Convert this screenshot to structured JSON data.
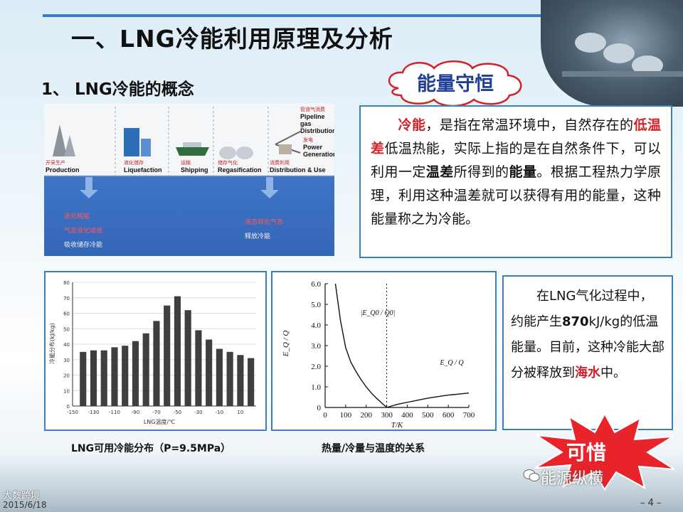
{
  "title": "一、LNG冷能利用原理及分析",
  "subtitle": "1、 LNG冷能的概念",
  "cloud_label": "能量守恒",
  "process": {
    "steps": [
      {
        "cn": "开采生产",
        "en": "Production"
      },
      {
        "cn": "液化储存",
        "en": "Liquefaction"
      },
      {
        "cn": "运输",
        "en": "Shipping"
      },
      {
        "cn": "储存气化",
        "en": "Regasification"
      },
      {
        "cn": "消费利用",
        "en": "Distribution & Use"
      }
    ],
    "branch_top": {
      "cn": "管道气消费",
      "en1": "Pipeline gas",
      "en2": "Distribution"
    },
    "branch_bottom": {
      "cn": "发电",
      "en1": "Power",
      "en2": "Generation"
    },
    "left_notes": [
      "液化耗能",
      "气态液化成液",
      "吸收储存冷能"
    ],
    "right_notes": [
      "液态转化气态",
      "释放冷能"
    ]
  },
  "definition": {
    "p1_a": "冷能",
    "p1_b": "，是指在常温环境中，自然存在的",
    "p1_c": "低温差",
    "p1_d": "低温热能，实际上指的是在自然条件下，可以利用一定",
    "p1_e": "温差",
    "p1_f": "所得到的",
    "p1_g": "能量",
    "p1_h": "。根据工程热力学原理，利用这种温差就可以获得有用的能量，这种能量称之为冷能。"
  },
  "side": {
    "s1": "在LNG气化过程中，约能产生",
    "s2": "870",
    "s3": "kJ/kg的低温能量。目前，这种冷能大部分被释放到",
    "s4": "海水",
    "s5": "中。"
  },
  "caption1": "LNG可用冷能分布（P=9.5MPa）",
  "caption2": "热量/冷量与温度的关系",
  "star_label": "可惜",
  "watermark": "能源纵横",
  "corner_logo": "大数跨境",
  "date": "2015/6/18",
  "page_number": "– 4 –",
  "colors": {
    "accent": "#3a7fc0",
    "red": "#d3202a",
    "cloud_text": "#1f3f97",
    "star": "#e8232a"
  },
  "chart_data": [
    {
      "type": "bar",
      "ylabel": "冷能分布(kJ/kg)",
      "xlabel": "LNG温度/℃",
      "x": [
        -140,
        -130,
        -120,
        -110,
        -100,
        -90,
        -80,
        -70,
        -60,
        -50,
        -40,
        -30,
        -20,
        -10,
        0,
        10,
        20
      ],
      "values": [
        35,
        36,
        36,
        38,
        39,
        42,
        47,
        55,
        65,
        71,
        62,
        49,
        43,
        37,
        35,
        33,
        31
      ],
      "xticks": [
        "-150",
        "-130",
        "-110",
        "-90",
        "-70",
        "-50",
        "-30",
        "-10",
        "10"
      ],
      "yticks": [
        "0",
        "10",
        "20",
        "30",
        "40",
        "50",
        "60",
        "70",
        "80"
      ],
      "ylim": [
        0,
        80
      ],
      "xlim": [
        -150,
        25
      ]
    },
    {
      "type": "line",
      "xlabel": "T/K",
      "ylabel": "E_Q / Q",
      "xticks": [
        "0",
        "100",
        "200",
        "300",
        "400",
        "500",
        "600",
        "700"
      ],
      "yticks": [
        "0",
        "1.0",
        "2.0",
        "3.0",
        "4.0",
        "5.0",
        "6.0"
      ],
      "xlim": [
        0,
        700
      ],
      "ylim": [
        0,
        6
      ],
      "vline_x": 300,
      "annotation_left": "|E_Q0 / Q0|",
      "annotation_right": "E_Q / Q",
      "series": [
        {
          "x": [
            50,
            75,
            100,
            125,
            150,
            175,
            200,
            225,
            250,
            275,
            300
          ],
          "y": [
            6.0,
            4.2,
            2.9,
            2.2,
            1.75,
            1.35,
            1.0,
            0.7,
            0.45,
            0.22,
            0
          ]
        },
        {
          "x": [
            300,
            350,
            400,
            450,
            500,
            550,
            600,
            650,
            700
          ],
          "y": [
            0,
            0.15,
            0.25,
            0.35,
            0.45,
            0.53,
            0.6,
            0.65,
            0.7
          ]
        }
      ]
    }
  ]
}
